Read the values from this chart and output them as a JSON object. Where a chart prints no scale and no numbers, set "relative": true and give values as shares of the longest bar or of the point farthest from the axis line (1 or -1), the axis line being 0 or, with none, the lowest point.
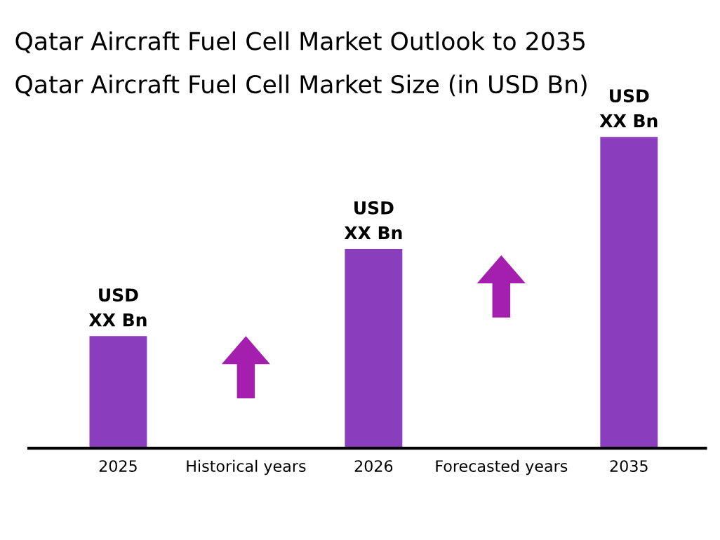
{
  "chart_data": {
    "type": "bar",
    "title": "Qatar Aircraft Fuel Cell Market Outlook to 2035",
    "subtitle": "Qatar Aircraft Fuel Cell Market Size (in USD Bn)",
    "categories": [
      "2025",
      "Historical years",
      "2026",
      "Forecasted years",
      "2035"
    ],
    "values": [
      0.36,
      null,
      0.64,
      null,
      1
    ],
    "annotations": [
      {
        "text": "USD\nXX Bn",
        "x": "2025",
        "y": 0.36
      },
      {
        "text": "USD\nXX Bn",
        "x": "2026",
        "y": 0.64
      },
      {
        "text": "USD\nXX Bn",
        "x": "2035",
        "y": 1
      }
    ],
    "color": "#8a3dbd",
    "relative": true,
    "grid": false,
    "legend": false
  }
}
